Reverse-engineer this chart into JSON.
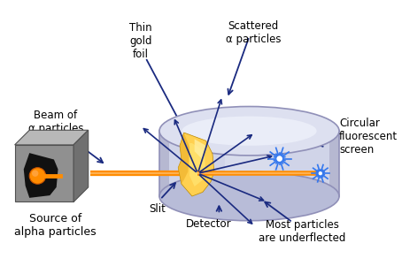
{
  "bg_color": "#ffffff",
  "labels": {
    "beam": "Beam of\nα particles",
    "thin_gold": "Thin\ngold\nfoil",
    "scattered": "Scattered\nα particles",
    "circular": "Circular\nfluorescent\nscreen",
    "slit": "Slit",
    "detector": "Detector",
    "most": "Most particles\nare underflected",
    "source": "Source of\nalpha particles"
  },
  "arrow_color": "#1a2a80",
  "beam_color": "#FF8C00",
  "disk_face": "#c8cce0",
  "disk_edge": "#9090b8",
  "disk_inner": "#d8dcea",
  "foil_color": "#FFD060",
  "foil_hi": "#FFE898",
  "foil_edge": "#cc9900",
  "source_face": "#909090",
  "source_top": "#b8b8b8",
  "source_right": "#707070",
  "source_edge": "#505050",
  "spark_color": "#3377ee",
  "scatter_color": "#1a2a80"
}
